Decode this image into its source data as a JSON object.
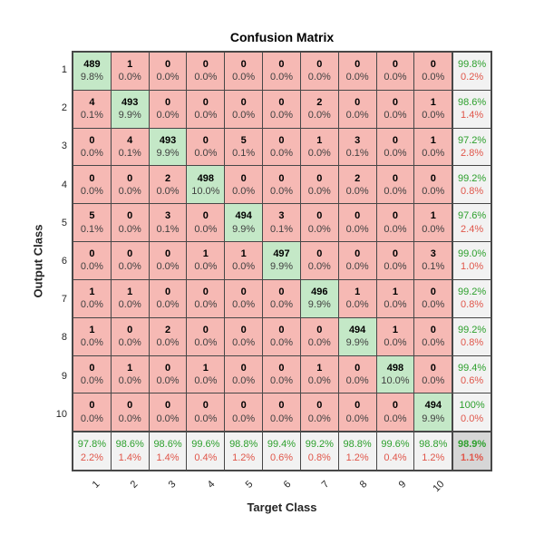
{
  "title": "Confusion Matrix",
  "chart_data": {
    "type": "heatmap",
    "title": "Confusion Matrix",
    "xlabel": "Target Class",
    "ylabel": "Output Class",
    "x_tick_labels": [
      "1",
      "2",
      "3",
      "4",
      "5",
      "6",
      "7",
      "8",
      "9",
      "10"
    ],
    "y_tick_labels": [
      "1",
      "2",
      "3",
      "4",
      "5",
      "6",
      "7",
      "8",
      "9",
      "10"
    ],
    "counts": [
      [
        489,
        1,
        0,
        0,
        0,
        0,
        0,
        0,
        0,
        0
      ],
      [
        4,
        493,
        0,
        0,
        0,
        0,
        2,
        0,
        0,
        1
      ],
      [
        0,
        4,
        493,
        0,
        5,
        0,
        1,
        3,
        0,
        1
      ],
      [
        0,
        0,
        2,
        498,
        0,
        0,
        0,
        2,
        0,
        0
      ],
      [
        5,
        0,
        3,
        0,
        494,
        3,
        0,
        0,
        0,
        1
      ],
      [
        0,
        0,
        0,
        1,
        1,
        497,
        0,
        0,
        0,
        3
      ],
      [
        1,
        1,
        0,
        0,
        0,
        0,
        496,
        1,
        1,
        0
      ],
      [
        1,
        0,
        2,
        0,
        0,
        0,
        0,
        494,
        1,
        0
      ],
      [
        0,
        1,
        0,
        1,
        0,
        0,
        1,
        0,
        498,
        0
      ],
      [
        0,
        0,
        0,
        0,
        0,
        0,
        0,
        0,
        0,
        494
      ]
    ],
    "percents": [
      [
        "9.8%",
        "0.0%",
        "0.0%",
        "0.0%",
        "0.0%",
        "0.0%",
        "0.0%",
        "0.0%",
        "0.0%",
        "0.0%"
      ],
      [
        "0.1%",
        "9.9%",
        "0.0%",
        "0.0%",
        "0.0%",
        "0.0%",
        "0.0%",
        "0.0%",
        "0.0%",
        "0.0%"
      ],
      [
        "0.0%",
        "0.1%",
        "9.9%",
        "0.0%",
        "0.1%",
        "0.0%",
        "0.0%",
        "0.1%",
        "0.0%",
        "0.0%"
      ],
      [
        "0.0%",
        "0.0%",
        "0.0%",
        "10.0%",
        "0.0%",
        "0.0%",
        "0.0%",
        "0.0%",
        "0.0%",
        "0.0%"
      ],
      [
        "0.1%",
        "0.0%",
        "0.1%",
        "0.0%",
        "9.9%",
        "0.1%",
        "0.0%",
        "0.0%",
        "0.0%",
        "0.0%"
      ],
      [
        "0.0%",
        "0.0%",
        "0.0%",
        "0.0%",
        "0.0%",
        "9.9%",
        "0.0%",
        "0.0%",
        "0.0%",
        "0.1%"
      ],
      [
        "0.0%",
        "0.0%",
        "0.0%",
        "0.0%",
        "0.0%",
        "0.0%",
        "9.9%",
        "0.0%",
        "0.0%",
        "0.0%"
      ],
      [
        "0.0%",
        "0.0%",
        "0.0%",
        "0.0%",
        "0.0%",
        "0.0%",
        "0.0%",
        "9.9%",
        "0.0%",
        "0.0%"
      ],
      [
        "0.0%",
        "0.0%",
        "0.0%",
        "0.0%",
        "0.0%",
        "0.0%",
        "0.0%",
        "0.0%",
        "10.0%",
        "0.0%"
      ],
      [
        "0.0%",
        "0.0%",
        "0.0%",
        "0.0%",
        "0.0%",
        "0.0%",
        "0.0%",
        "0.0%",
        "0.0%",
        "9.9%"
      ]
    ],
    "row_summary_green": [
      "99.8%",
      "98.6%",
      "97.2%",
      "99.2%",
      "97.6%",
      "99.0%",
      "99.2%",
      "99.2%",
      "99.4%",
      "100%"
    ],
    "row_summary_red": [
      "0.2%",
      "1.4%",
      "2.8%",
      "0.8%",
      "2.4%",
      "1.0%",
      "0.8%",
      "0.8%",
      "0.6%",
      "0.0%"
    ],
    "col_summary_green": [
      "97.8%",
      "98.6%",
      "98.6%",
      "99.6%",
      "98.8%",
      "99.4%",
      "99.2%",
      "98.8%",
      "99.6%",
      "98.8%"
    ],
    "col_summary_red": [
      "2.2%",
      "1.4%",
      "1.4%",
      "0.4%",
      "1.2%",
      "0.6%",
      "0.8%",
      "1.2%",
      "0.4%",
      "1.2%"
    ],
    "overall_green": "98.9%",
    "overall_red": "1.1%"
  },
  "colors": {
    "diagonal_cell": "#c4e8c7",
    "off_diagonal_cell": "#f6b9b4",
    "summary_cell": "#f2f2f2",
    "overall_cell": "#d6d6d6",
    "grid_line": "#474747",
    "green_text": "#2da02d",
    "red_text": "#e0564a"
  }
}
